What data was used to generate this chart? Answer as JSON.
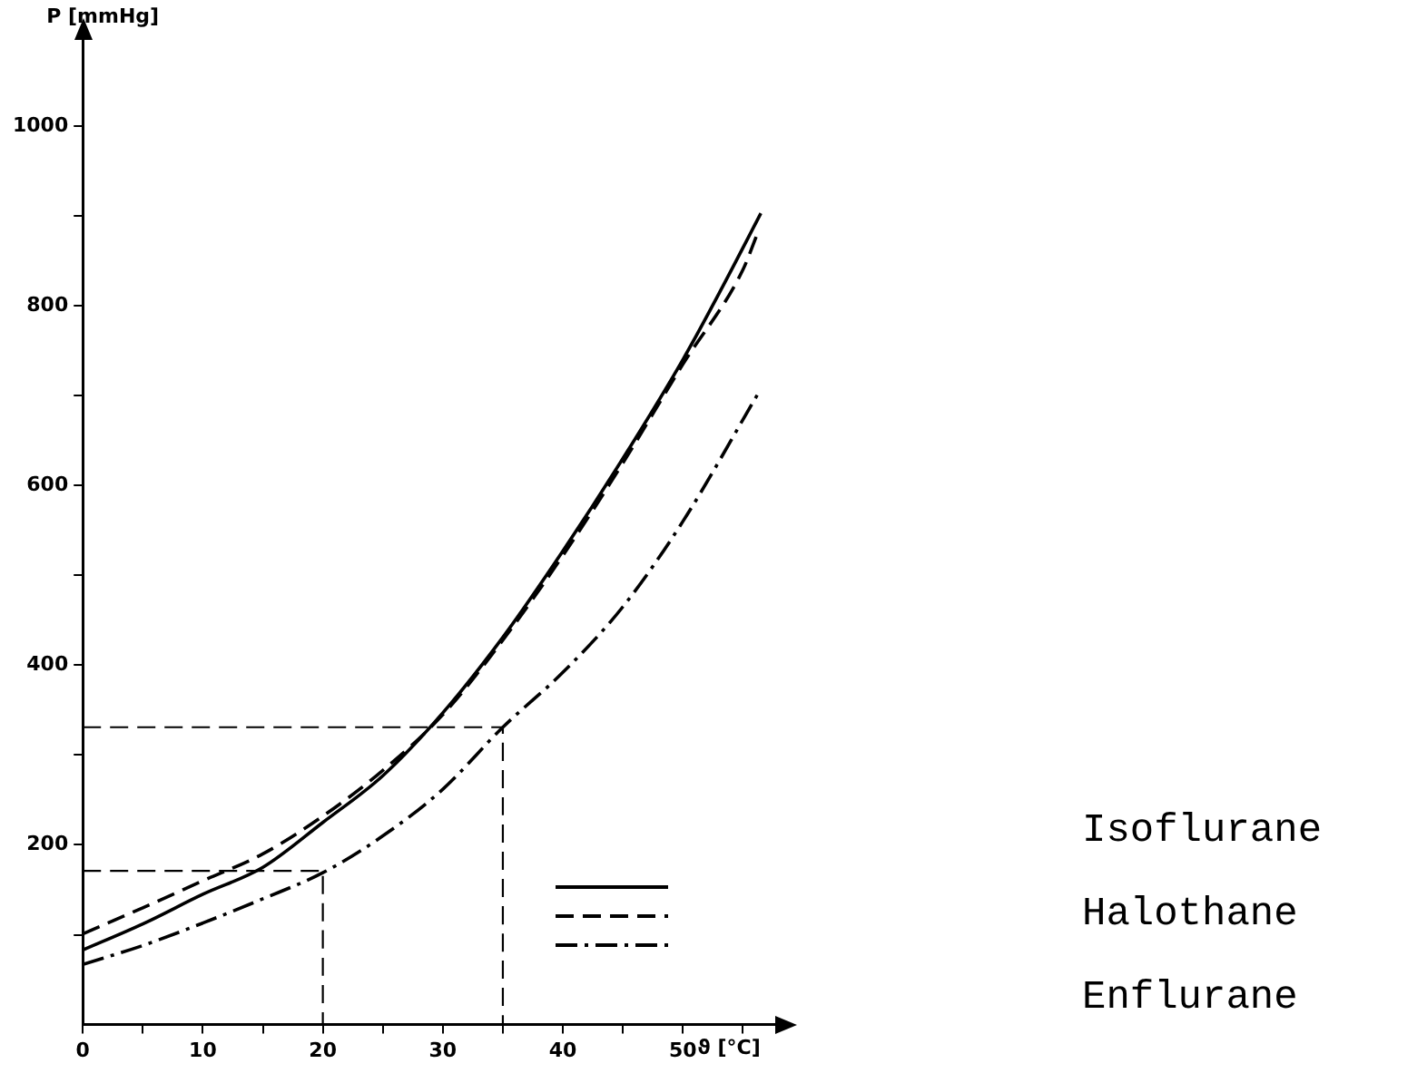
{
  "chart_data": {
    "type": "line",
    "xlabel": "ϑ [°C]",
    "ylabel": "P [mmHg]",
    "xlim": [
      0,
      58
    ],
    "ylim": [
      0,
      1100
    ],
    "xticks": [
      0,
      {
        "value": 5,
        "label": null
      },
      10,
      {
        "value": 15,
        "label": null
      },
      20,
      {
        "value": 25,
        "label": null
      },
      30,
      {
        "value": 35,
        "label": null
      },
      40,
      {
        "value": 45,
        "label": null
      },
      50,
      {
        "value": 55,
        "label": null
      }
    ],
    "yticks": [
      {
        "value": 100,
        "label": null
      },
      200,
      {
        "value": 300,
        "label": null
      },
      400,
      {
        "value": 500,
        "label": null
      },
      600,
      {
        "value": 700,
        "label": null
      },
      800,
      {
        "value": 900,
        "label": null
      },
      1000
    ],
    "grid": false,
    "legend": "right",
    "marker": "none",
    "series": [
      {
        "name": "Isoflurane",
        "color": "#000000",
        "line_style": "solid",
        "x": [
          0,
          5,
          10,
          15,
          20,
          25,
          30,
          35,
          40,
          45,
          50,
          53.3,
          56.5
        ],
        "values": [
          83,
          112,
          145,
          175,
          225,
          277,
          347,
          431,
          527,
          630,
          740,
          821,
          903
        ]
      },
      {
        "name": "Halothane",
        "color": "#000000",
        "line_style": "dashed",
        "x": [
          0,
          5,
          10,
          15,
          20,
          25,
          30,
          35,
          40,
          45,
          50,
          55,
          56.2
        ],
        "values": [
          101,
          130,
          160,
          190,
          232,
          283,
          345,
          428,
          522,
          625,
          735,
          840,
          880
        ]
      },
      {
        "name": "Enflurane",
        "color": "#000000",
        "line_style": "dashdot",
        "x": [
          0,
          5,
          10,
          15,
          20,
          25,
          30,
          35,
          40,
          45,
          50,
          56.3
        ],
        "values": [
          67,
          88,
          113,
          140,
          169,
          210,
          262,
          331,
          392,
          465,
          560,
          703
        ]
      },
      {
        "color": "#000000",
        "line_style": "dashed",
        "x": [
          0,
          20,
          20
        ],
        "values": [
          171,
          171,
          0
        ]
      },
      {
        "color": "#000000",
        "line_style": "dashed",
        "x": [
          0,
          35,
          35
        ],
        "values": [
          331,
          331,
          0
        ]
      }
    ]
  }
}
